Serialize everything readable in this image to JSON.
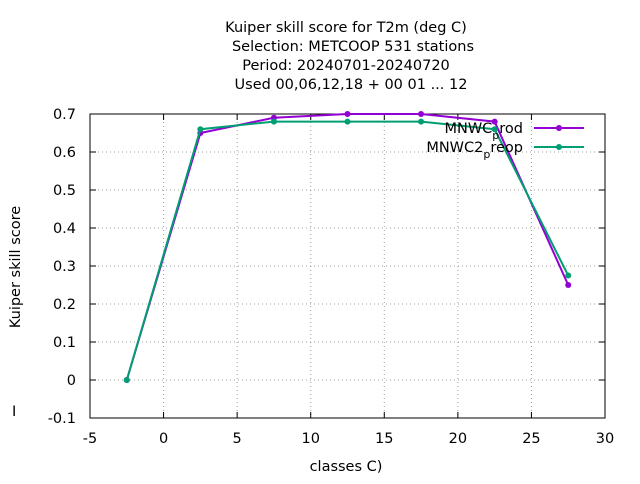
{
  "chart_data": {
    "type": "line",
    "title_lines": [
      "Kuiper skill score  for T2m (deg C)",
      "Selection: METCOOP    531 stations",
      "Period: 20240701-20240720",
      "Used  00,06,12,18 + 00 01 ... 12"
    ],
    "xlabel": "classes C)",
    "ylabel": "Kuiper skill score",
    "xlim": [
      -5,
      30
    ],
    "ylim": [
      -0.1,
      0.7
    ],
    "xticks": [
      -5,
      0,
      5,
      10,
      15,
      20,
      25,
      30
    ],
    "yticks": [
      -0.1,
      0,
      0.1,
      0.2,
      0.3,
      0.4,
      0.5,
      0.6,
      0.7
    ],
    "ytick_labels": [
      "-0.1",
      "0",
      "0.1",
      "0.2",
      "0.3",
      "0.4",
      "0.5",
      "0.6",
      "0.7"
    ],
    "grid": true,
    "legend_position": "top-right",
    "stray_mark": "I",
    "series": [
      {
        "name": "MNWC_prod",
        "legend_parts": [
          "MNWC",
          "p",
          "rod"
        ],
        "color": "#9400d3",
        "x": [
          -2.5,
          2.5,
          7.5,
          12.5,
          17.5,
          22.5,
          27.5
        ],
        "y": [
          0.0,
          0.65,
          0.69,
          0.7,
          0.7,
          0.68,
          0.25
        ]
      },
      {
        "name": "MNWC2_preop",
        "legend_parts": [
          "MNWC2",
          "p",
          "reop"
        ],
        "color": "#009e73",
        "x": [
          -2.5,
          2.5,
          7.5,
          12.5,
          17.5,
          22.5,
          27.5
        ],
        "y": [
          0.0,
          0.66,
          0.68,
          0.68,
          0.68,
          0.66,
          0.275
        ]
      }
    ]
  }
}
